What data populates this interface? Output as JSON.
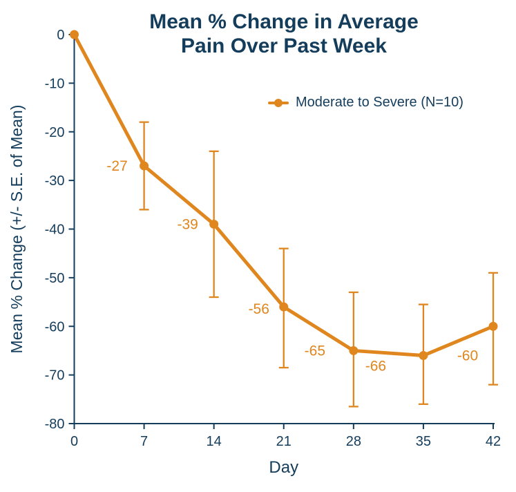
{
  "chart_data": {
    "type": "line",
    "title_lines": [
      "Mean % Change in Average",
      "Pain Over Past Week"
    ],
    "xlabel": "Day",
    "ylabel": "Mean % Change (+/- S.E. of Mean)",
    "legend_entries": [
      {
        "name": "Moderate to Severe (N=10)",
        "marker": "line-dot"
      }
    ],
    "legend_position": "upper-right-inside",
    "grid": false,
    "xlim": [
      0,
      42
    ],
    "ylim": [
      -80,
      0
    ],
    "x_ticks": [
      0,
      7,
      14,
      21,
      28,
      35,
      42
    ],
    "y_ticks": [
      0,
      -10,
      -20,
      -30,
      -40,
      -50,
      -60,
      -70,
      -80
    ],
    "series": [
      {
        "name": "Moderate to Severe (N=10)",
        "points": [
          {
            "day": 0,
            "value": 0,
            "label": null,
            "err_top": null,
            "err_bottom": null,
            "label_dx": 0,
            "label_dy": 0
          },
          {
            "day": 7,
            "value": -27,
            "label": "-27",
            "err_top": -18,
            "err_bottom": -36,
            "label_dx": -39,
            "label_dy": 0
          },
          {
            "day": 14,
            "value": -39,
            "label": "-39",
            "err_top": -24,
            "err_bottom": -54,
            "label_dx": -38,
            "label_dy": 0
          },
          {
            "day": 21,
            "value": -56,
            "label": "-56",
            "err_top": -44,
            "err_bottom": -68.5,
            "label_dx": -36,
            "label_dy": 3
          },
          {
            "day": 28,
            "value": -65,
            "label": "-65",
            "err_top": -53,
            "err_bottom": -76.5,
            "label_dx": -56,
            "label_dy": 0
          },
          {
            "day": 35,
            "value": -66,
            "label": "-66",
            "err_top": -55.5,
            "err_bottom": -76,
            "label_dx": -69,
            "label_dy": 15
          },
          {
            "day": 42,
            "value": -60,
            "label": "-60",
            "err_top": -49,
            "err_bottom": -72,
            "label_dx": -37,
            "label_dy": 42
          }
        ]
      }
    ],
    "colors": {
      "series": "#E0861E",
      "text": "#143C5B",
      "background": "#FFFFFF"
    }
  }
}
